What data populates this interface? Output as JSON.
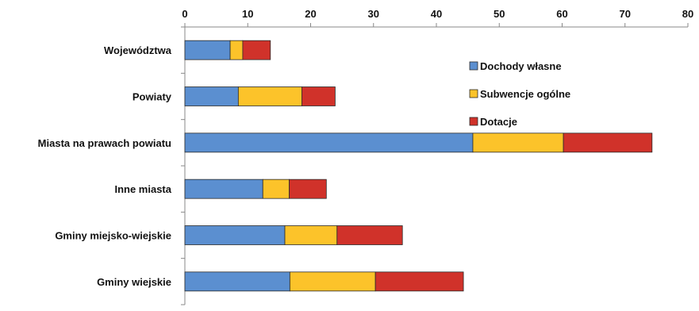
{
  "chart_data": {
    "type": "bar",
    "orientation": "horizontal",
    "stacked": true,
    "categories": [
      "Województwa",
      "Powiaty",
      "Miasta na prawach powiatu",
      "Inne miasta",
      "Gminy miejsko-wiejskie",
      "Gminy wiejskie"
    ],
    "series": [
      {
        "name": "Dochody własne",
        "color": "#5b8fd0",
        "values": [
          7.2,
          8.5,
          45.8,
          12.4,
          15.9,
          16.7
        ]
      },
      {
        "name": "Subwencje ogólne",
        "color": "#fcc32a",
        "values": [
          2.0,
          10.1,
          14.4,
          4.2,
          8.3,
          13.6
        ]
      },
      {
        "name": "Dotacje",
        "color": "#d0322a",
        "values": [
          4.4,
          5.3,
          14.1,
          5.9,
          10.4,
          14.0
        ]
      }
    ],
    "xlim": [
      0,
      80
    ],
    "xticks": [
      "0",
      "10",
      "20",
      "30",
      "40",
      "50",
      "60",
      "70",
      "80"
    ],
    "x_axis_position": "top",
    "grid": false,
    "legend_position": "upper-center-inside"
  }
}
